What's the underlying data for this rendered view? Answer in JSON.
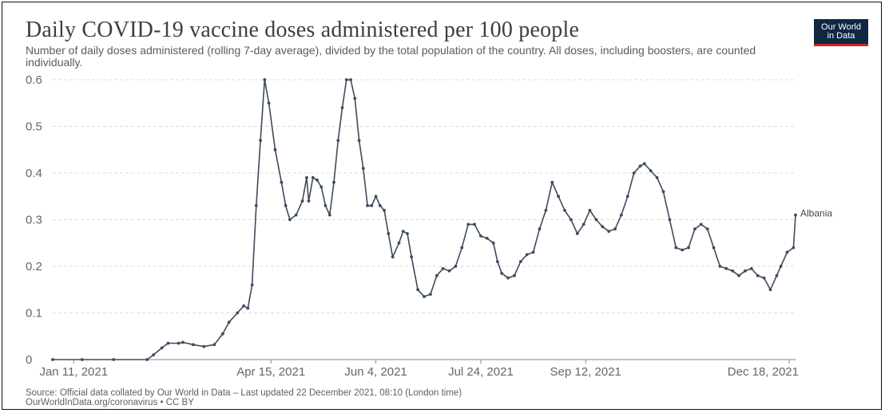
{
  "title": "Daily COVID-19 vaccine doses administered per 100 people",
  "subtitle": "Number of daily doses administered (rolling 7-day average), divided by the total population of the country. All doses, including boosters, are counted individually.",
  "logo": {
    "line1": "Our World",
    "line2": "in Data"
  },
  "source_line1": "Source: Official data collated by Our World in Data – Last updated 22 December 2021, 08:10 (London time)",
  "source_line2": "OurWorldInData.org/coronavirus • CC BY",
  "colors": {
    "series": "#3d4b5c",
    "grid": "#dddddd",
    "axis": "#888888"
  },
  "chart_data": {
    "type": "line",
    "title": "Daily COVID-19 vaccine doses administered per 100 people",
    "xlabel": "",
    "ylabel": "",
    "x_range": [
      "2021-01-01",
      "2021-12-21"
    ],
    "ylim": [
      0,
      0.6
    ],
    "y_ticks": [
      "0",
      "0.1",
      "0.2",
      "0.3",
      "0.4",
      "0.5",
      "0.6"
    ],
    "x_ticks": [
      "Jan 11, 2021",
      "Apr 15, 2021",
      "Jun 4, 2021",
      "Jul 24, 2021",
      "Sep 12, 2021",
      "Dec 18, 2021"
    ],
    "grid": true,
    "legend": "label at line end",
    "series": [
      {
        "name": "Albania",
        "points": [
          [
            "2021-01-01",
            0.0
          ],
          [
            "2021-01-15",
            0.0
          ],
          [
            "2021-01-30",
            0.0
          ],
          [
            "2021-02-15",
            0.0
          ],
          [
            "2021-02-18",
            0.01
          ],
          [
            "2021-02-22",
            0.025
          ],
          [
            "2021-02-25",
            0.035
          ],
          [
            "2021-03-02",
            0.035
          ],
          [
            "2021-03-04",
            0.037
          ],
          [
            "2021-03-09",
            0.032
          ],
          [
            "2021-03-14",
            0.028
          ],
          [
            "2021-03-19",
            0.032
          ],
          [
            "2021-03-23",
            0.055
          ],
          [
            "2021-03-26",
            0.08
          ],
          [
            "2021-03-30",
            0.1
          ],
          [
            "2021-04-02",
            0.115
          ],
          [
            "2021-04-04",
            0.11
          ],
          [
            "2021-04-06",
            0.16
          ],
          [
            "2021-04-08",
            0.33
          ],
          [
            "2021-04-10",
            0.47
          ],
          [
            "2021-04-12",
            0.6
          ],
          [
            "2021-04-14",
            0.55
          ],
          [
            "2021-04-17",
            0.45
          ],
          [
            "2021-04-20",
            0.38
          ],
          [
            "2021-04-22",
            0.33
          ],
          [
            "2021-04-24",
            0.3
          ],
          [
            "2021-04-27",
            0.31
          ],
          [
            "2021-04-30",
            0.34
          ],
          [
            "2021-05-02",
            0.39
          ],
          [
            "2021-05-03",
            0.34
          ],
          [
            "2021-05-05",
            0.39
          ],
          [
            "2021-05-07",
            0.385
          ],
          [
            "2021-05-09",
            0.37
          ],
          [
            "2021-05-11",
            0.33
          ],
          [
            "2021-05-13",
            0.31
          ],
          [
            "2021-05-15",
            0.38
          ],
          [
            "2021-05-17",
            0.47
          ],
          [
            "2021-05-19",
            0.54
          ],
          [
            "2021-05-21",
            0.6
          ],
          [
            "2021-05-23",
            0.6
          ],
          [
            "2021-05-25",
            0.56
          ],
          [
            "2021-05-27",
            0.47
          ],
          [
            "2021-05-29",
            0.41
          ],
          [
            "2021-05-31",
            0.33
          ],
          [
            "2021-06-02",
            0.33
          ],
          [
            "2021-06-04",
            0.35
          ],
          [
            "2021-06-06",
            0.33
          ],
          [
            "2021-06-08",
            0.32
          ],
          [
            "2021-06-10",
            0.27
          ],
          [
            "2021-06-12",
            0.22
          ],
          [
            "2021-06-15",
            0.25
          ],
          [
            "2021-06-17",
            0.275
          ],
          [
            "2021-06-19",
            0.27
          ],
          [
            "2021-06-21",
            0.22
          ],
          [
            "2021-06-24",
            0.15
          ],
          [
            "2021-06-27",
            0.135
          ],
          [
            "2021-06-30",
            0.14
          ],
          [
            "2021-07-03",
            0.18
          ],
          [
            "2021-07-06",
            0.195
          ],
          [
            "2021-07-09",
            0.19
          ],
          [
            "2021-07-12",
            0.2
          ],
          [
            "2021-07-15",
            0.24
          ],
          [
            "2021-07-18",
            0.29
          ],
          [
            "2021-07-21",
            0.29
          ],
          [
            "2021-07-24",
            0.265
          ],
          [
            "2021-07-27",
            0.26
          ],
          [
            "2021-07-30",
            0.25
          ],
          [
            "2021-08-01",
            0.21
          ],
          [
            "2021-08-03",
            0.185
          ],
          [
            "2021-08-06",
            0.175
          ],
          [
            "2021-08-09",
            0.18
          ],
          [
            "2021-08-12",
            0.21
          ],
          [
            "2021-08-15",
            0.225
          ],
          [
            "2021-08-18",
            0.23
          ],
          [
            "2021-08-21",
            0.28
          ],
          [
            "2021-08-24",
            0.32
          ],
          [
            "2021-08-27",
            0.38
          ],
          [
            "2021-08-30",
            0.35
          ],
          [
            "2021-09-02",
            0.32
          ],
          [
            "2021-09-05",
            0.3
          ],
          [
            "2021-09-08",
            0.27
          ],
          [
            "2021-09-11",
            0.29
          ],
          [
            "2021-09-14",
            0.32
          ],
          [
            "2021-09-17",
            0.3
          ],
          [
            "2021-09-20",
            0.285
          ],
          [
            "2021-09-23",
            0.275
          ],
          [
            "2021-09-26",
            0.28
          ],
          [
            "2021-09-29",
            0.31
          ],
          [
            "2021-10-02",
            0.35
          ],
          [
            "2021-10-05",
            0.4
          ],
          [
            "2021-10-08",
            0.415
          ],
          [
            "2021-10-10",
            0.42
          ],
          [
            "2021-10-13",
            0.405
          ],
          [
            "2021-10-16",
            0.39
          ],
          [
            "2021-10-19",
            0.36
          ],
          [
            "2021-10-22",
            0.3
          ],
          [
            "2021-10-25",
            0.24
          ],
          [
            "2021-10-28",
            0.235
          ],
          [
            "2021-10-31",
            0.24
          ],
          [
            "2021-11-03",
            0.28
          ],
          [
            "2021-11-06",
            0.29
          ],
          [
            "2021-11-09",
            0.28
          ],
          [
            "2021-11-12",
            0.24
          ],
          [
            "2021-11-15",
            0.2
          ],
          [
            "2021-11-18",
            0.195
          ],
          [
            "2021-11-21",
            0.19
          ],
          [
            "2021-11-24",
            0.18
          ],
          [
            "2021-11-27",
            0.19
          ],
          [
            "2021-11-30",
            0.195
          ],
          [
            "2021-12-03",
            0.18
          ],
          [
            "2021-12-06",
            0.175
          ],
          [
            "2021-12-09",
            0.15
          ],
          [
            "2021-12-12",
            0.18
          ],
          [
            "2021-12-14",
            0.2
          ],
          [
            "2021-12-17",
            0.23
          ],
          [
            "2021-12-20",
            0.24
          ],
          [
            "2021-12-21",
            0.31
          ]
        ]
      }
    ]
  }
}
